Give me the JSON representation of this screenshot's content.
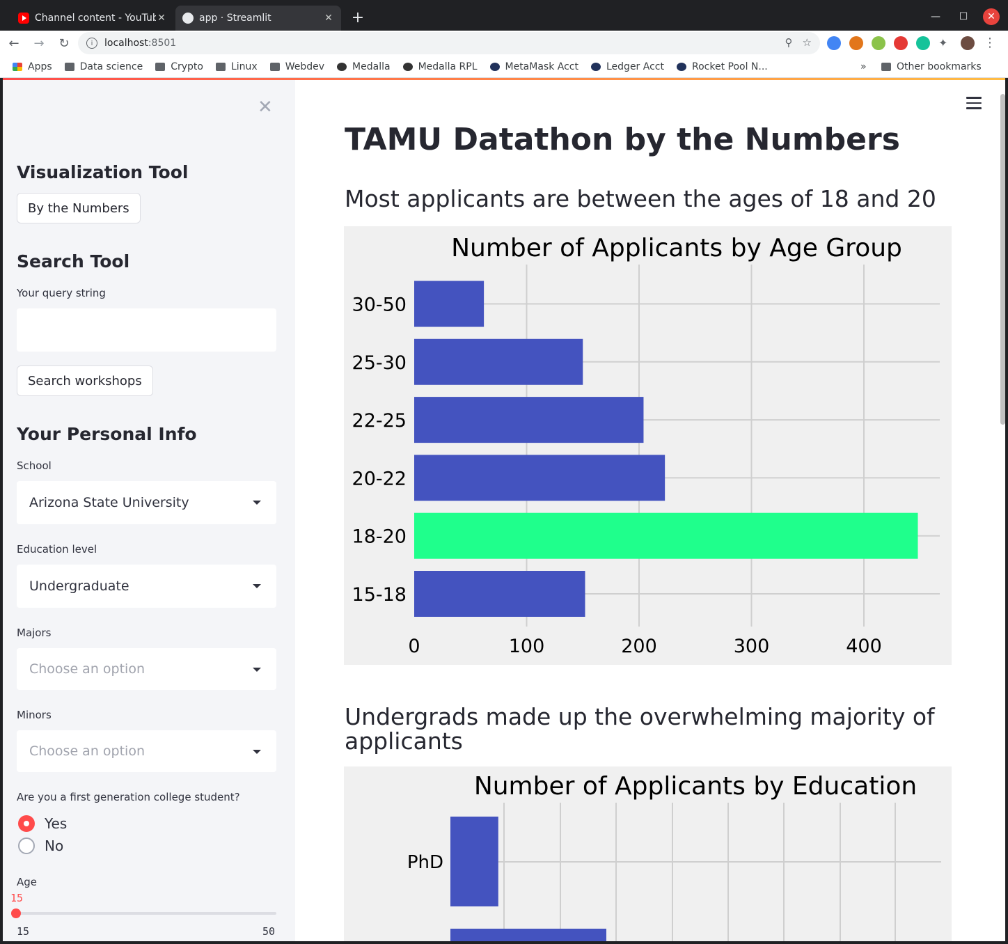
{
  "browser": {
    "tabs": [
      {
        "title": "Channel content - YouTube",
        "active": false
      },
      {
        "title": "app · Streamlit",
        "active": true
      }
    ],
    "address": {
      "host": "localhost",
      "port": ":8501"
    },
    "bookmarks": [
      "Apps",
      "Data science",
      "Crypto",
      "Linux",
      "Webdev",
      "Medalla",
      "Medalla RPL",
      "MetaMask Acct",
      "Ledger Acct",
      "Rocket Pool N..."
    ],
    "bookmarks_overflow": "»",
    "other_bookmarks": "Other bookmarks"
  },
  "sidebar": {
    "visualization_header": "Visualization Tool",
    "by_numbers_button": "By the Numbers",
    "search_header": "Search Tool",
    "query_label": "Your query string",
    "query_value": "",
    "search_button": "Search workshops",
    "personal_header": "Your Personal Info",
    "school_label": "School",
    "school_value": "Arizona State University",
    "education_label": "Education level",
    "education_value": "Undergraduate",
    "majors_label": "Majors",
    "majors_placeholder": "Choose an option",
    "minors_label": "Minors",
    "minors_placeholder": "Choose an option",
    "first_gen_label": "Are you a first generation college student?",
    "first_gen_options": [
      "Yes",
      "No"
    ],
    "first_gen_selected": "Yes",
    "age_label": "Age",
    "age_value": "15",
    "age_min": "15",
    "age_max": "50"
  },
  "main": {
    "title": "TAMU Datathon by the Numbers",
    "subheader_age": "Most applicants are between the ages of 18 and 20",
    "subheader_education": "Undergrads made up the overwhelming majority of applicants"
  },
  "colors": {
    "bar": "#4453bf",
    "highlight": "#1fff8c",
    "accent": "#ff4b4b",
    "chart_bg": "#f0f0f0"
  },
  "chart_data": [
    {
      "type": "bar",
      "orientation": "horizontal",
      "title": "Number of Applicants by Age Group",
      "categories": [
        "15-18",
        "18-20",
        "20-22",
        "22-25",
        "25-30",
        "30-50"
      ],
      "values": [
        152,
        448,
        223,
        204,
        150,
        62
      ],
      "highlight": "18-20",
      "xticks": [
        0,
        100,
        200,
        300,
        400
      ],
      "xlim": [
        0,
        468
      ],
      "grid": true
    },
    {
      "type": "bar",
      "orientation": "horizontal",
      "title": "Number of Applicants by Education",
      "categories_visible": [
        "PhD"
      ],
      "values_visible": [
        43
      ],
      "partial_next_value": 140,
      "xlim": [
        0,
        436
      ],
      "grid": true
    }
  ]
}
